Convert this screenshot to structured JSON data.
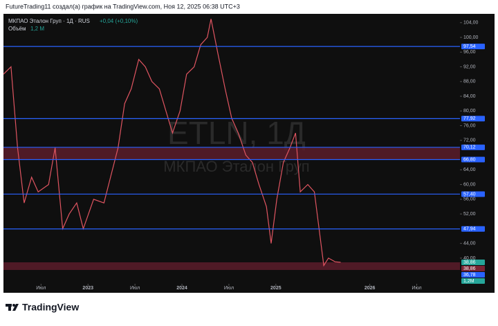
{
  "header": {
    "attribution": "FutureTrading11 создал(а) график на TradingView.com, Ноя 12, 2025 06:38 UTC+3"
  },
  "footer": {
    "brand": "TradingView"
  },
  "chart_data": {
    "type": "line",
    "symbol": "МКПАО Эталон Груп · 1Д · RUS",
    "change": "+0,04 (+0,10%)",
    "volume_label": "Объём",
    "volume_value": "1,2 M",
    "watermark_ticker": "ETLN, 1Д",
    "watermark_name": "МКПАО Эталон Груп",
    "color": "#e05561",
    "x": [
      2022.1,
      2022.18,
      2022.25,
      2022.32,
      2022.4,
      2022.47,
      2022.58,
      2022.65,
      2022.73,
      2022.8,
      2022.88,
      2022.95,
      2023.06,
      2023.17,
      2023.24,
      2023.32,
      2023.39,
      2023.46,
      2023.54,
      2023.61,
      2023.68,
      2023.76,
      2023.83,
      2023.9,
      2023.98,
      2024.05,
      2024.13,
      2024.2,
      2024.27,
      2024.31,
      2024.38,
      2024.46,
      2024.53,
      2024.6,
      2024.68,
      2024.75,
      2024.82,
      2024.9,
      2024.95,
      2025.01,
      2025.08,
      2025.15,
      2025.21,
      2025.26,
      2025.34,
      2025.41,
      2025.46,
      2025.51,
      2025.56,
      2025.63,
      2025.69
    ],
    "values": [
      90,
      92,
      70,
      55,
      62,
      58,
      60,
      70,
      48,
      52,
      55,
      48,
      56,
      55,
      62,
      70,
      82,
      86,
      94,
      92,
      88,
      86,
      80,
      74,
      80,
      90,
      92,
      98,
      100,
      105,
      96,
      86,
      78,
      74,
      68,
      66,
      60,
      54,
      44,
      56,
      66,
      70,
      74,
      58,
      60,
      58,
      48,
      38,
      40,
      39,
      38.86
    ],
    "xlim": [
      2022.1,
      2026.96
    ],
    "xticks": [
      {
        "value": 2022.5,
        "label": "Июл"
      },
      {
        "value": 2023,
        "label": "2023"
      },
      {
        "value": 2023.5,
        "label": "Июл"
      },
      {
        "value": 2024,
        "label": "2024"
      },
      {
        "value": 2024.5,
        "label": "Июл"
      },
      {
        "value": 2025,
        "label": "2025"
      },
      {
        "value": 2026,
        "label": "2026"
      },
      {
        "value": 2026.5,
        "label": "Июл"
      }
    ],
    "ylim": [
      33.4,
      106.4
    ],
    "yticks": [
      {
        "value": 40,
        "label": "40,00"
      },
      {
        "value": 44,
        "label": "44,00"
      },
      {
        "value": 52,
        "label": "52,00"
      },
      {
        "value": 56,
        "label": "56,00"
      },
      {
        "value": 60,
        "label": "60,00"
      },
      {
        "value": 64,
        "label": "64,00"
      },
      {
        "value": 72,
        "label": "72,00"
      },
      {
        "value": 76,
        "label": "76,00"
      },
      {
        "value": 80,
        "label": "80,00"
      },
      {
        "value": 84,
        "label": "84,00"
      },
      {
        "value": 88,
        "label": "88,00"
      },
      {
        "value": 92,
        "label": "92,00"
      },
      {
        "value": 96,
        "label": "96,00"
      },
      {
        "value": 100,
        "label": "100,00"
      },
      {
        "value": 104,
        "label": "104,00"
      }
    ],
    "levels": [
      {
        "value": 97.54,
        "label": "97,54",
        "color": "#2962ff"
      },
      {
        "value": 77.92,
        "label": "77,92",
        "color": "#2962ff"
      },
      {
        "value": 70.12,
        "label": "70,12",
        "color": "#2962ff"
      },
      {
        "value": 66.8,
        "label": "66,80",
        "color": "#2962ff"
      },
      {
        "value": 57.4,
        "label": "57,40",
        "color": "#2962ff"
      },
      {
        "value": 47.94,
        "label": "47,94",
        "color": "#2962ff"
      }
    ],
    "zones": [
      {
        "from": 66.8,
        "to": 70.12,
        "color": "#5a1c2a"
      },
      {
        "from": 36.78,
        "to": 38.86,
        "color": "#5a1c2a"
      }
    ],
    "last_labels": [
      {
        "value": 38.86,
        "label": "38,86",
        "color": "#26a69a"
      },
      {
        "value": 38.86,
        "label": "38,86",
        "color": "#7a2433"
      },
      {
        "value": 36.78,
        "label": "36,78",
        "color": "#2962ff"
      }
    ],
    "volume_last": {
      "value": 1200000,
      "label": "1,2M",
      "color": "#26a69a"
    }
  }
}
